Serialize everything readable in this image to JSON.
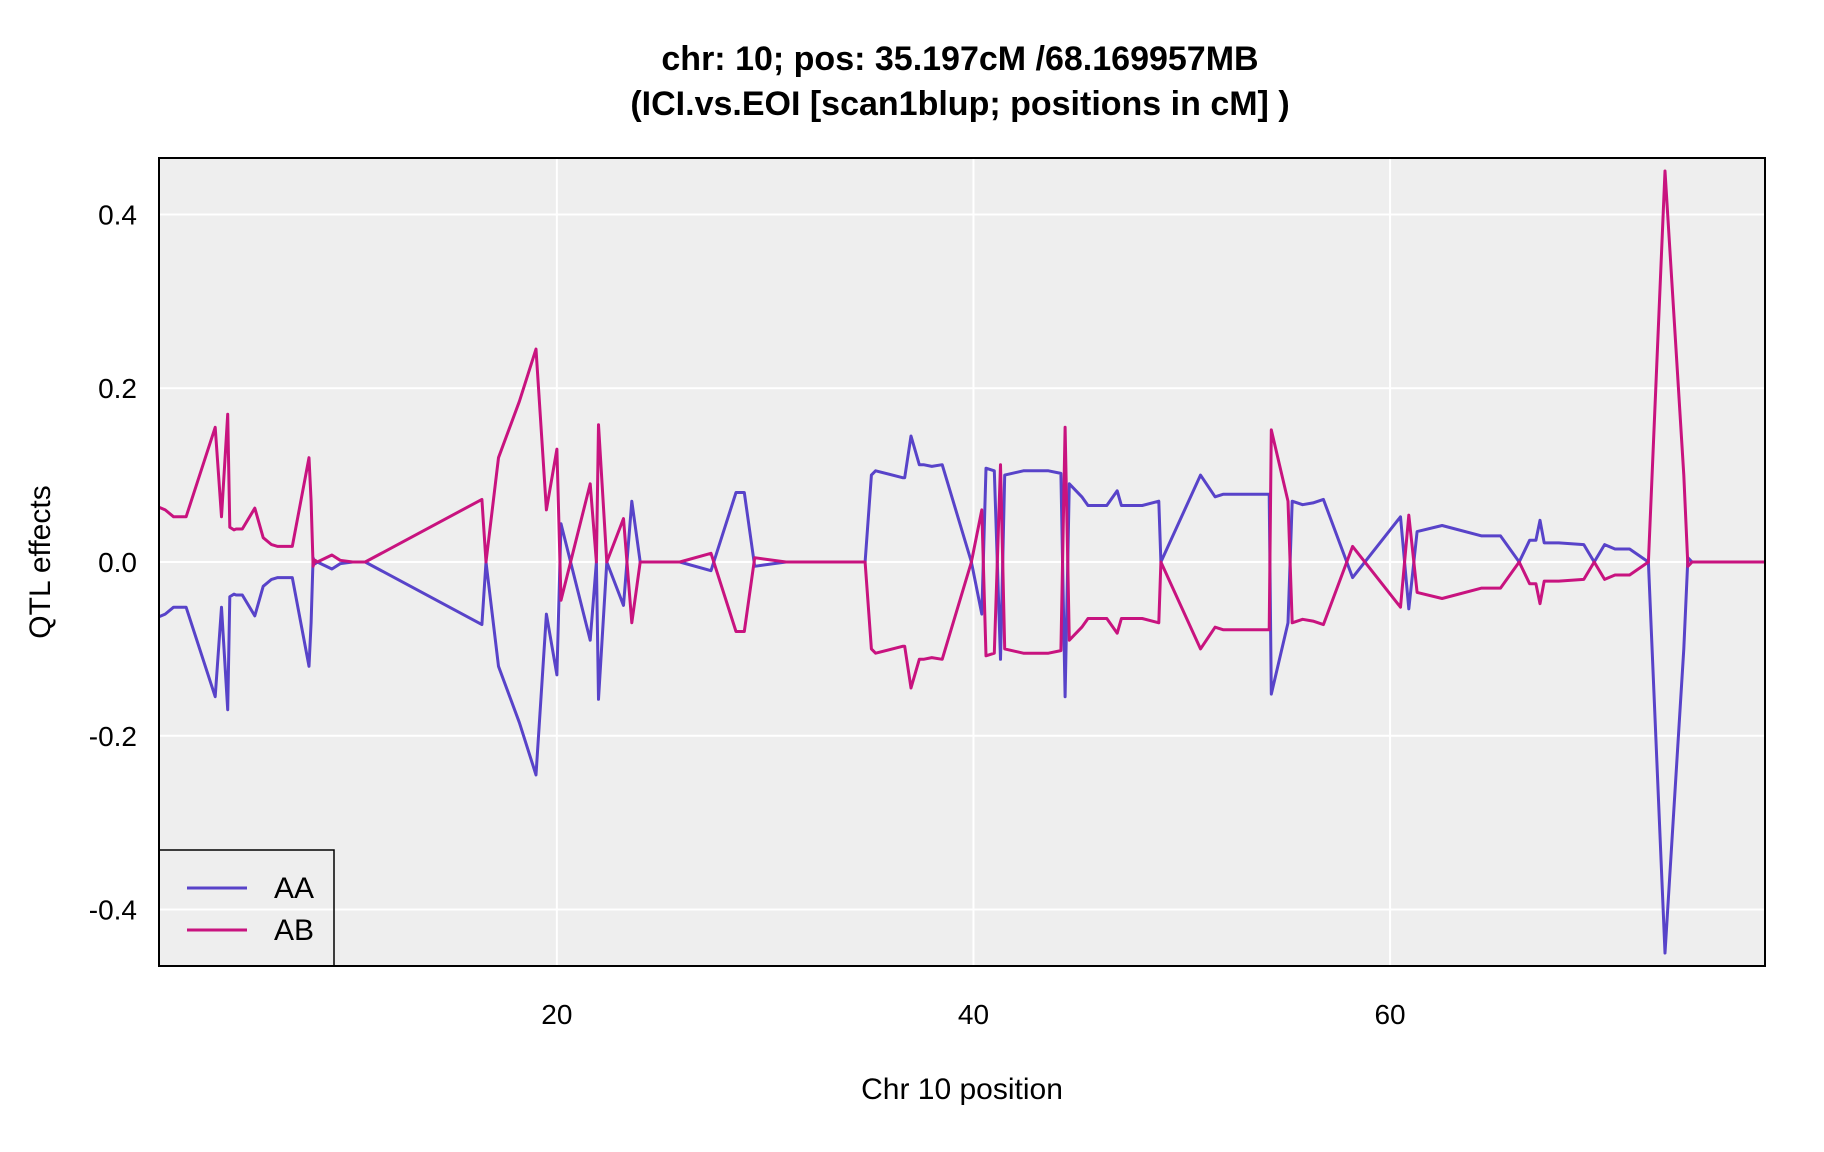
{
  "colors": {
    "panel_bg": "#eeeeee",
    "grid": "#ffffff",
    "AA": "#5843c9",
    "AB": "#c8137f",
    "frame": "#000000"
  },
  "chart_data": {
    "type": "line",
    "title": "chr: 10; pos: 35.197cM /68.169957MB",
    "subtitle": "(ICI.vs.EOI [scan1blup; positions in cM] )",
    "xlabel": "Chr 10 position",
    "ylabel": "QTL effects",
    "xlim": [
      0.9,
      78.0
    ],
    "ylim": [
      -0.465,
      0.465
    ],
    "xticks": [
      20,
      40,
      60
    ],
    "xtick_labels": [
      "20",
      "40",
      "60"
    ],
    "yticks": [
      -0.4,
      -0.2,
      0.0,
      0.2,
      0.4
    ],
    "ytick_labels": [
      "-0.4",
      "-0.2",
      "0.0",
      "0.2",
      "0.4"
    ],
    "grid": true,
    "legend_position": "bottom-left",
    "legend": [
      "AA",
      "AB"
    ],
    "x": [
      0.9,
      1.2,
      1.6,
      2.2,
      3.6,
      3.9,
      4.2,
      4.3,
      4.5,
      4.6,
      4.9,
      5.5,
      5.9,
      6.3,
      6.6,
      7.3,
      8.1,
      8.2,
      8.3,
      8.4,
      8.5,
      9.2,
      9.6,
      10.2,
      10.8,
      16.4,
      16.6,
      17.2,
      18.2,
      19.0,
      19.5,
      20.0,
      20.2,
      21.6,
      21.9,
      22.0,
      22.4,
      23.2,
      23.6,
      24.0,
      25.9,
      27.4,
      28.6,
      29.0,
      29.5,
      31.0,
      34.8,
      35.1,
      35.3,
      36.6,
      36.7,
      37.0,
      37.4,
      37.6,
      38.0,
      38.5,
      39.9,
      40.4,
      40.6,
      41.0,
      41.3,
      41.5,
      42.4,
      43.6,
      44.2,
      44.4,
      44.6,
      45.2,
      45.5,
      46.4,
      46.9,
      47.1,
      48.1,
      48.9,
      49.0,
      50.9,
      51.6,
      52.0,
      52.5,
      54.2,
      54.3,
      55.1,
      55.3,
      55.8,
      56.3,
      56.8,
      58.2,
      60.5,
      60.9,
      61.3,
      62.5,
      64.4,
      65.3,
      66.2,
      66.7,
      67.0,
      67.2,
      67.4,
      68.1,
      69.3,
      69.8,
      70.3,
      70.8,
      71.5,
      72.4,
      73.2,
      74.1,
      74.3,
      74.5,
      78.0
    ],
    "series": [
      {
        "name": "AA",
        "values": [
          -0.063,
          -0.06,
          -0.052,
          -0.052,
          -0.155,
          -0.052,
          -0.17,
          -0.04,
          -0.037,
          -0.038,
          -0.038,
          -0.062,
          -0.028,
          -0.02,
          -0.018,
          -0.018,
          -0.12,
          -0.07,
          0.005,
          -0.002,
          0.0,
          -0.008,
          -0.002,
          0.0,
          0.0,
          -0.072,
          0.0,
          -0.12,
          -0.185,
          -0.245,
          -0.06,
          -0.13,
          0.044,
          -0.09,
          0.0,
          -0.158,
          0.0,
          -0.05,
          0.07,
          0.0,
          0.0,
          -0.01,
          0.08,
          0.08,
          -0.005,
          0.0,
          0.0,
          0.1,
          0.105,
          0.097,
          0.097,
          0.145,
          0.112,
          0.112,
          0.11,
          0.112,
          0.0,
          -0.06,
          0.108,
          0.105,
          -0.112,
          0.1,
          0.105,
          0.105,
          0.102,
          -0.155,
          0.09,
          0.075,
          0.065,
          0.065,
          0.082,
          0.065,
          0.065,
          0.07,
          0.0,
          0.1,
          0.075,
          0.078,
          0.078,
          0.078,
          -0.152,
          -0.07,
          0.07,
          0.066,
          0.068,
          0.072,
          -0.018,
          0.052,
          -0.054,
          0.035,
          0.042,
          0.03,
          0.03,
          0.0,
          0.025,
          0.025,
          0.048,
          0.022,
          0.022,
          0.02,
          0.0,
          0.02,
          0.015,
          0.015,
          0.0,
          -0.45,
          -0.1,
          0.005,
          0.0,
          0.0
        ]
      },
      {
        "name": "AB",
        "values": [
          0.063,
          0.06,
          0.052,
          0.052,
          0.155,
          0.052,
          0.17,
          0.04,
          0.037,
          0.038,
          0.038,
          0.062,
          0.028,
          0.02,
          0.018,
          0.018,
          0.12,
          0.07,
          -0.005,
          0.002,
          0.0,
          0.008,
          0.002,
          0.0,
          0.0,
          0.072,
          0.0,
          0.12,
          0.185,
          0.245,
          0.06,
          0.13,
          -0.044,
          0.09,
          0.0,
          0.158,
          0.0,
          0.05,
          -0.07,
          0.0,
          0.0,
          0.01,
          -0.08,
          -0.08,
          0.005,
          0.0,
          0.0,
          -0.1,
          -0.105,
          -0.097,
          -0.097,
          -0.145,
          -0.112,
          -0.112,
          -0.11,
          -0.112,
          0.0,
          0.06,
          -0.108,
          -0.105,
          0.112,
          -0.1,
          -0.105,
          -0.105,
          -0.102,
          0.155,
          -0.09,
          -0.075,
          -0.065,
          -0.065,
          -0.082,
          -0.065,
          -0.065,
          -0.07,
          0.0,
          -0.1,
          -0.075,
          -0.078,
          -0.078,
          -0.078,
          0.152,
          0.07,
          -0.07,
          -0.066,
          -0.068,
          -0.072,
          0.018,
          -0.052,
          0.054,
          -0.035,
          -0.042,
          -0.03,
          -0.03,
          0.0,
          -0.025,
          -0.025,
          -0.048,
          -0.022,
          -0.022,
          -0.02,
          0.0,
          -0.02,
          -0.015,
          -0.015,
          0.0,
          0.45,
          0.1,
          -0.005,
          0.0,
          0.0
        ]
      }
    ]
  }
}
